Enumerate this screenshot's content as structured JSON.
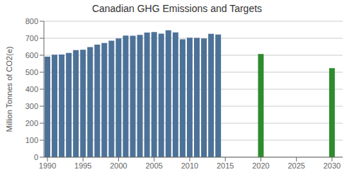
{
  "chart_data": {
    "type": "bar",
    "title": "Canadian GHG Emissions and Targets",
    "y_label": "Million Tonnes of CO2(e)",
    "xlim": [
      1989.5,
      2031.5
    ],
    "xticks": [
      1990,
      1995,
      2000,
      2005,
      2010,
      2015,
      2020,
      2025,
      2030
    ],
    "ylim": [
      0,
      800
    ],
    "yticks": [
      0,
      100,
      200,
      300,
      400,
      500,
      600,
      700,
      800
    ],
    "grid": true,
    "series": [
      {
        "x": [
          1990,
          1991,
          1992,
          1993,
          1994,
          1995,
          1996,
          1997,
          1998,
          1999,
          2000,
          2001,
          2002,
          2003,
          2004,
          2005,
          2006,
          2007,
          2008,
          2009,
          2010,
          2011,
          2012,
          2013,
          2014
        ],
        "values": [
          592,
          603,
          604,
          614,
          630,
          632,
          648,
          662,
          672,
          685,
          699,
          716,
          715,
          720,
          733,
          736,
          727,
          747,
          734,
          694,
          703,
          702,
          699,
          726,
          722
        ],
        "color": "#4d7298"
      },
      {
        "x": [
          2020,
          2030
        ],
        "values": [
          607,
          524
        ],
        "color": "#2e8b2e"
      }
    ]
  }
}
